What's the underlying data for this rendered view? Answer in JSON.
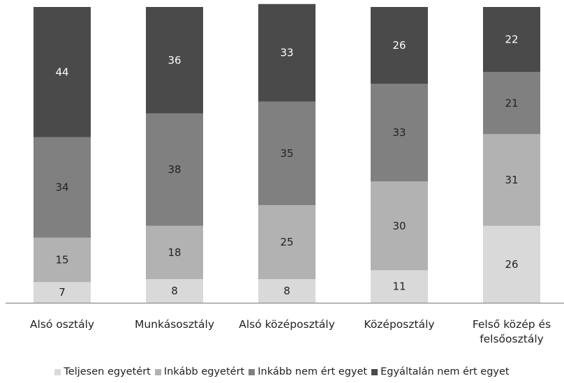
{
  "chart_data": {
    "type": "bar",
    "stacked": true,
    "categories": [
      "Alsó osztály",
      "Munkásosztály",
      "Alsó középosztály",
      "Középosztály",
      "Felső közép és felsőosztály"
    ],
    "series": [
      {
        "name": "Teljesen egyetért",
        "values": [
          7,
          8,
          8,
          11,
          26
        ],
        "color": "#d9d9d9",
        "label_color": "#222222"
      },
      {
        "name": "Inkább egyetért",
        "values": [
          15,
          18,
          25,
          30,
          31
        ],
        "color": "#b2b2b2",
        "label_color": "#222222"
      },
      {
        "name": "Inkább nem ért egyet",
        "values": [
          34,
          38,
          35,
          33,
          21
        ],
        "color": "#808080",
        "label_color": "#222222"
      },
      {
        "name": "Egyáltalán nem ért egyet",
        "values": [
          44,
          36,
          33,
          26,
          22
        ],
        "color": "#4a4a4a",
        "label_color": "#ffffff"
      }
    ],
    "ylim": [
      0,
      100
    ],
    "grid": false,
    "legend_position": "bottom"
  }
}
